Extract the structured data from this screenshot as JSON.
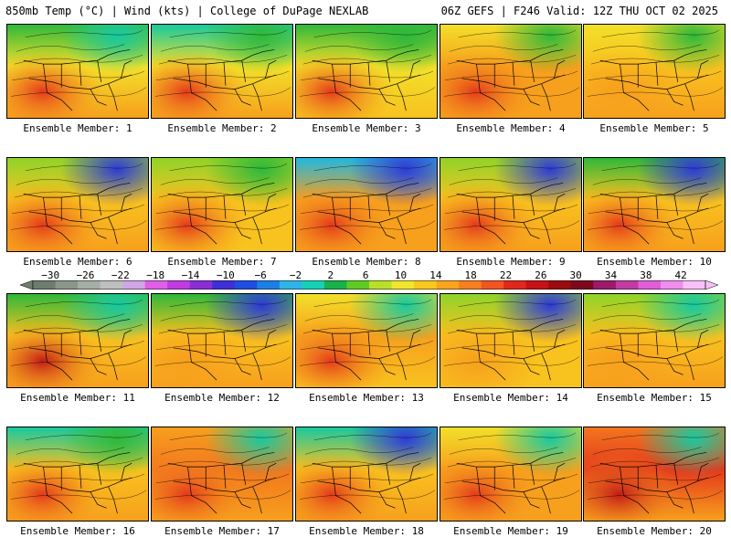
{
  "header": {
    "left_title": "850mb Temp (°C) | Wind (kts) | College of DuPage NEXLAB",
    "right_title": "06Z GEFS | F246 Valid: 12Z THU OCT 02 2025"
  },
  "members": [
    {
      "label": "Ensemble Member: 1"
    },
    {
      "label": "Ensemble Member: 2"
    },
    {
      "label": "Ensemble Member: 3"
    },
    {
      "label": "Ensemble Member: 4"
    },
    {
      "label": "Ensemble Member: 5"
    },
    {
      "label": "Ensemble Member: 6"
    },
    {
      "label": "Ensemble Member: 7"
    },
    {
      "label": "Ensemble Member: 8"
    },
    {
      "label": "Ensemble Member: 9"
    },
    {
      "label": "Ensemble Member: 10"
    },
    {
      "label": "Ensemble Member: 11"
    },
    {
      "label": "Ensemble Member: 12"
    },
    {
      "label": "Ensemble Member: 13"
    },
    {
      "label": "Ensemble Member: 14"
    },
    {
      "label": "Ensemble Member: 15"
    },
    {
      "label": "Ensemble Member: 16"
    },
    {
      "label": "Ensemble Member: 17"
    },
    {
      "label": "Ensemble Member: 18"
    },
    {
      "label": "Ensemble Member: 19"
    },
    {
      "label": "Ensemble Member: 20"
    }
  ],
  "colorbar": {
    "tick_labels": [
      "−30",
      "−26",
      "−22",
      "−18",
      "−14",
      "−10",
      "−6",
      "−2",
      "2",
      "6",
      "10",
      "14",
      "18",
      "22",
      "26",
      "30",
      "34",
      "38",
      "42"
    ],
    "colors": [
      "#6e7d6e",
      "#8a968a",
      "#a5aea5",
      "#bfbfbf",
      "#cfa6e6",
      "#e15ee6",
      "#c03ce0",
      "#8a2fd6",
      "#3f2fd6",
      "#1f4fe0",
      "#1b7fe6",
      "#2fb4e8",
      "#17d1b5",
      "#17b24a",
      "#5ecb25",
      "#b8e02a",
      "#f0e62d",
      "#f9c81f",
      "#f9a41d",
      "#f67f20",
      "#f0561f",
      "#e0271c",
      "#c41218",
      "#9a0b12",
      "#7d0a1c",
      "#9d1a6a",
      "#c03ca0",
      "#e05ed6",
      "#f08ef0",
      "#f8c0f8"
    ]
  }
}
